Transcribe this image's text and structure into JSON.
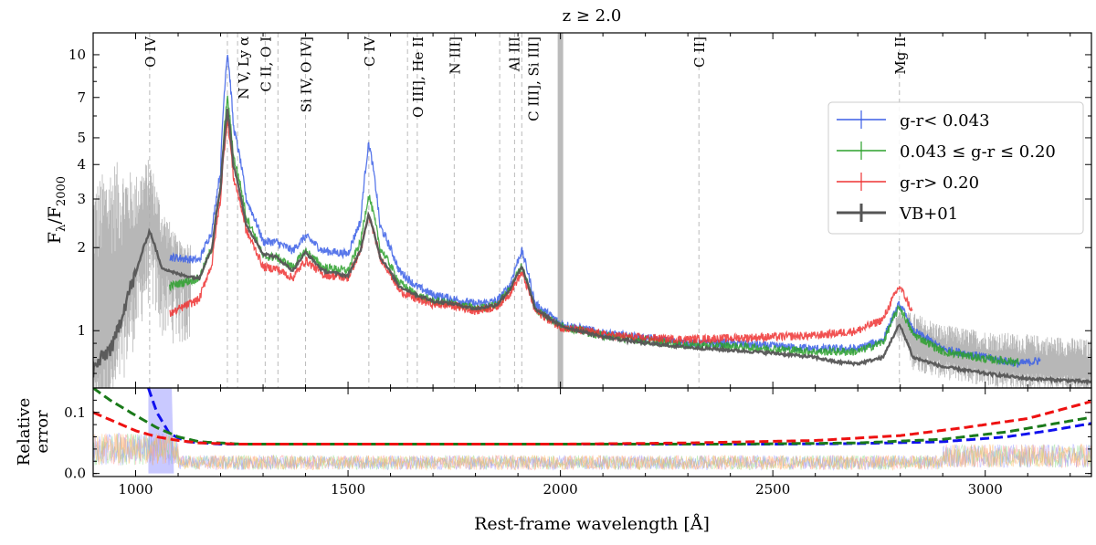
{
  "chart_data": {
    "type": "line",
    "title": "z ≥ 2.0",
    "xlabel": "Rest-frame wavelength [Å]",
    "x_range": [
      900,
      3250
    ],
    "x_ticks": [
      1000,
      1500,
      2000,
      2500,
      3000
    ],
    "x_ticklabels": [
      "1000",
      "1500",
      "2000",
      "2500",
      "3000"
    ],
    "x_minor_step": 100,
    "reference_wavelength": 2000,
    "top_panel": {
      "ylabel_main": "F",
      "ylabel_sub1": "λ",
      "ylabel_sep": "/F",
      "ylabel_sub2": "2000",
      "yscale": "log",
      "ylim": [
        0.62,
        12
      ],
      "y_ticks": [
        1,
        2,
        3,
        4,
        5,
        7,
        10
      ],
      "y_ticklabels": [
        "1",
        "2",
        "3",
        "4",
        "5",
        "7",
        "10"
      ],
      "y_minor": [
        0.7,
        0.8,
        0.9,
        6,
        8,
        9
      ],
      "emission_lines": [
        {
          "label": "O IV",
          "wavelength": 1033
        },
        {
          "label": "N V, Ly α",
          "wavelength": 1216
        },
        {
          "label": "",
          "wavelength": 1240
        },
        {
          "label": "C II, O I",
          "wavelength": 1305
        },
        {
          "label": "",
          "wavelength": 1335
        },
        {
          "label": "Si IV, O IV]",
          "wavelength": 1400
        },
        {
          "label": "C IV",
          "wavelength": 1549
        },
        {
          "label": "",
          "wavelength": 1640
        },
        {
          "label": "O III], He II",
          "wavelength": 1663
        },
        {
          "label": "N III]",
          "wavelength": 1750
        },
        {
          "label": "",
          "wavelength": 1857
        },
        {
          "label": "Al III",
          "wavelength": 1892
        },
        {
          "label": "C III], Si III]",
          "wavelength": 1909
        },
        {
          "label": "C II]",
          "wavelength": 2326
        },
        {
          "label": "Mg II",
          "wavelength": 2798
        }
      ],
      "series": [
        {
          "name": "g-r< 0.043",
          "color": "#3b5fe6",
          "x": [
            1080,
            1150,
            1180,
            1200,
            1216,
            1230,
            1260,
            1300,
            1330,
            1370,
            1400,
            1440,
            1500,
            1530,
            1549,
            1575,
            1620,
            1660,
            1700,
            1750,
            1800,
            1850,
            1880,
            1909,
            1940,
            2000,
            2100,
            2200,
            2300,
            2400,
            2500,
            2600,
            2700,
            2760,
            2798,
            2830,
            2900,
            3000,
            3080,
            3130
          ],
          "y": [
            1.85,
            1.8,
            2.3,
            3.8,
            10.2,
            5.5,
            3.0,
            2.1,
            2.1,
            1.95,
            2.2,
            1.95,
            1.9,
            2.5,
            4.8,
            2.4,
            1.65,
            1.45,
            1.35,
            1.3,
            1.25,
            1.28,
            1.45,
            1.95,
            1.25,
            1.06,
            0.98,
            0.94,
            0.9,
            0.9,
            0.88,
            0.86,
            0.86,
            0.93,
            1.25,
            1.0,
            0.86,
            0.8,
            0.76,
            0.78
          ]
        },
        {
          "name": "0.043 ≤ g-r ≤ 0.20",
          "color": "#2ca02c",
          "x": [
            1080,
            1150,
            1180,
            1200,
            1216,
            1230,
            1260,
            1300,
            1330,
            1370,
            1400,
            1440,
            1500,
            1530,
            1549,
            1575,
            1620,
            1660,
            1700,
            1750,
            1800,
            1850,
            1880,
            1909,
            1940,
            2000,
            2100,
            2200,
            2300,
            2400,
            2500,
            2600,
            2700,
            2760,
            2798,
            2830,
            2900,
            3000,
            3080
          ],
          "y": [
            1.45,
            1.55,
            2.0,
            3.3,
            7.0,
            4.3,
            2.6,
            1.85,
            1.85,
            1.7,
            1.95,
            1.7,
            1.65,
            2.1,
            3.1,
            2.0,
            1.5,
            1.35,
            1.28,
            1.25,
            1.2,
            1.24,
            1.4,
            1.72,
            1.2,
            1.04,
            0.96,
            0.92,
            0.89,
            0.88,
            0.86,
            0.84,
            0.84,
            0.91,
            1.22,
            0.97,
            0.84,
            0.79,
            0.77
          ]
        },
        {
          "name": "g-r> 0.20",
          "color": "#ee3333",
          "x": [
            1080,
            1150,
            1180,
            1200,
            1216,
            1230,
            1260,
            1300,
            1330,
            1370,
            1400,
            1440,
            1500,
            1530,
            1549,
            1575,
            1620,
            1660,
            1700,
            1750,
            1800,
            1850,
            1880,
            1909,
            1940,
            2000,
            2100,
            2200,
            2300,
            2400,
            2500,
            2600,
            2700,
            2760,
            2798,
            2830
          ],
          "y": [
            1.15,
            1.3,
            1.75,
            3.0,
            5.8,
            3.6,
            2.3,
            1.7,
            1.68,
            1.55,
            1.8,
            1.6,
            1.55,
            1.95,
            2.6,
            1.85,
            1.4,
            1.3,
            1.25,
            1.23,
            1.18,
            1.22,
            1.36,
            1.62,
            1.18,
            1.03,
            0.97,
            0.94,
            0.93,
            0.94,
            0.95,
            0.96,
            1.0,
            1.1,
            1.45,
            1.15
          ]
        },
        {
          "name": "VB+01",
          "color": "#555555",
          "x": [
            900,
            950,
            1000,
            1033,
            1060,
            1100,
            1150,
            1180,
            1200,
            1216,
            1230,
            1260,
            1300,
            1330,
            1370,
            1400,
            1440,
            1500,
            1530,
            1549,
            1575,
            1620,
            1660,
            1700,
            1750,
            1800,
            1850,
            1880,
            1909,
            1940,
            2000,
            2100,
            2200,
            2300,
            2400,
            2500,
            2600,
            2650,
            2700,
            2760,
            2798,
            2830,
            2900,
            3000,
            3100,
            3200,
            3250
          ],
          "y": [
            0.72,
            0.9,
            1.6,
            2.3,
            1.7,
            1.6,
            1.55,
            2.0,
            3.3,
            6.3,
            4.0,
            2.4,
            1.9,
            1.85,
            1.65,
            1.92,
            1.65,
            1.58,
            1.95,
            2.65,
            1.85,
            1.45,
            1.35,
            1.28,
            1.25,
            1.2,
            1.24,
            1.4,
            1.7,
            1.2,
            1.04,
            0.95,
            0.9,
            0.87,
            0.85,
            0.83,
            0.8,
            0.77,
            0.76,
            0.8,
            1.05,
            0.8,
            0.74,
            0.7,
            0.67,
            0.66,
            0.65
          ]
        }
      ],
      "background_noise": {
        "name": "VB+01 scatter",
        "color": "#aaaaaa",
        "x": [
          900,
          950,
          1000,
          1033,
          1060,
          1100,
          2800,
          2900,
          3000,
          3100,
          3200,
          3250
        ],
        "y": [
          2.8,
          3.4,
          3.2,
          3.8,
          2.6,
          2.0,
          1.15,
          1.0,
          0.95,
          0.92,
          0.9,
          0.88
        ]
      },
      "vband": {
        "x": 2000,
        "color": "#bbbbbb"
      }
    },
    "bottom_panel": {
      "ylabel_line1": "Relative",
      "ylabel_line2": "error",
      "ylim": [
        -0.005,
        0.14
      ],
      "y_ticks": [
        0.0,
        0.1
      ],
      "y_ticklabels": [
        "0.0",
        "0.1"
      ],
      "y_minor_step": 0.02,
      "series": [
        {
          "name": "blue error",
          "color": "#1010ee",
          "x": [
            1030,
            1050,
            1080,
            1120,
            1200,
            1400,
            1800,
            2200,
            2500,
            2700,
            2900,
            3050,
            3150,
            3250
          ],
          "y": [
            0.14,
            0.1,
            0.065,
            0.052,
            0.048,
            0.048,
            0.048,
            0.048,
            0.048,
            0.049,
            0.052,
            0.06,
            0.07,
            0.082
          ]
        },
        {
          "name": "green error",
          "color": "#1a7a1a",
          "x": [
            900,
            940,
            1000,
            1050,
            1100,
            1150,
            1250,
            1600,
            2000,
            2400,
            2700,
            2900,
            3050,
            3150,
            3250
          ],
          "y": [
            0.14,
            0.12,
            0.095,
            0.075,
            0.06,
            0.052,
            0.048,
            0.048,
            0.048,
            0.048,
            0.05,
            0.056,
            0.068,
            0.08,
            0.092
          ]
        },
        {
          "name": "red error",
          "color": "#ee1111",
          "x": [
            900,
            950,
            1000,
            1050,
            1100,
            1150,
            1250,
            1600,
            2000,
            2300,
            2600,
            2800,
            2950,
            3100,
            3250
          ],
          "y": [
            0.1,
            0.085,
            0.07,
            0.06,
            0.054,
            0.05,
            0.048,
            0.048,
            0.048,
            0.05,
            0.054,
            0.062,
            0.075,
            0.09,
            0.118
          ]
        }
      ],
      "noise_level": 0.02
    },
    "legend": {
      "position": "right",
      "entries": [
        {
          "label": "g-r< 0.043",
          "color": "#3b5fe6"
        },
        {
          "label": "0.043 ≤ g-r ≤ 0.20",
          "color": "#2ca02c"
        },
        {
          "label": "g-r> 0.20",
          "color": "#ee3333"
        },
        {
          "label": "VB+01",
          "color": "#555555"
        }
      ]
    }
  }
}
